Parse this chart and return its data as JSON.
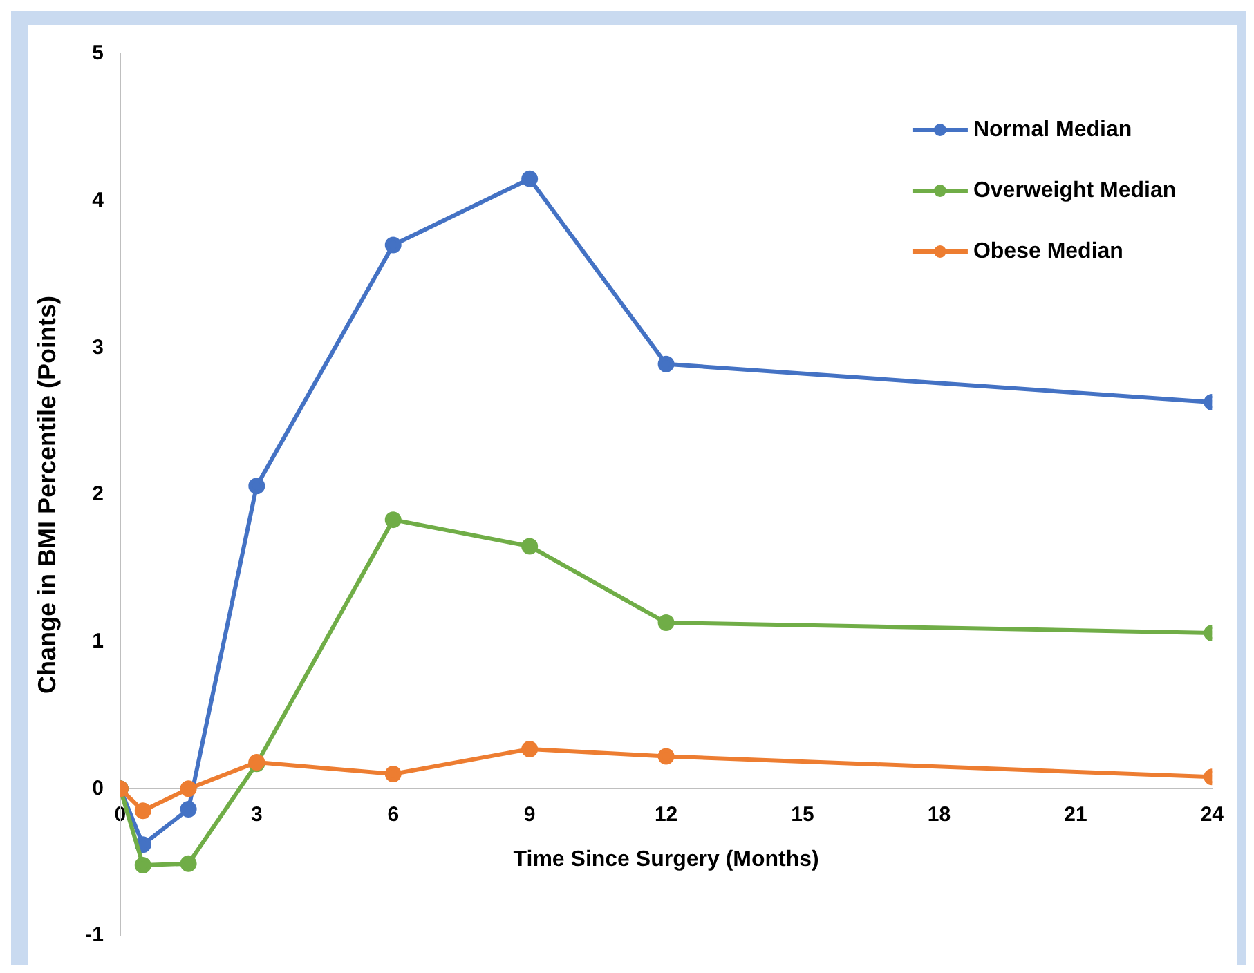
{
  "chart_data": {
    "type": "line",
    "xlabel": "Time Since Surgery (Months)",
    "ylabel": "Change in BMI Percentile (Points)",
    "x": [
      0,
      0.5,
      1.5,
      3,
      6,
      9,
      12,
      24
    ],
    "series": [
      {
        "name": "Normal Median",
        "color": "#4472c4",
        "values": [
          0,
          -0.38,
          -0.14,
          2.06,
          3.7,
          4.15,
          2.89,
          2.63
        ]
      },
      {
        "name": "Overweight Median",
        "color": "#70ad47",
        "values": [
          0,
          -0.52,
          -0.51,
          0.17,
          1.83,
          1.65,
          1.13,
          1.06
        ]
      },
      {
        "name": "Obese Median",
        "color": "#ed7d31",
        "values": [
          0,
          -0.15,
          0,
          0.18,
          0.1,
          0.27,
          0.22,
          0.08
        ]
      }
    ],
    "xlim": [
      0,
      24
    ],
    "xticks": [
      0,
      3,
      6,
      9,
      12,
      15,
      18,
      21,
      24
    ],
    "ylim": [
      -1,
      5
    ],
    "yticks": [
      -1,
      0,
      1,
      2,
      3,
      4,
      5
    ],
    "grid": false,
    "legend": "top right",
    "marker": "circle",
    "line_style": "solid"
  }
}
